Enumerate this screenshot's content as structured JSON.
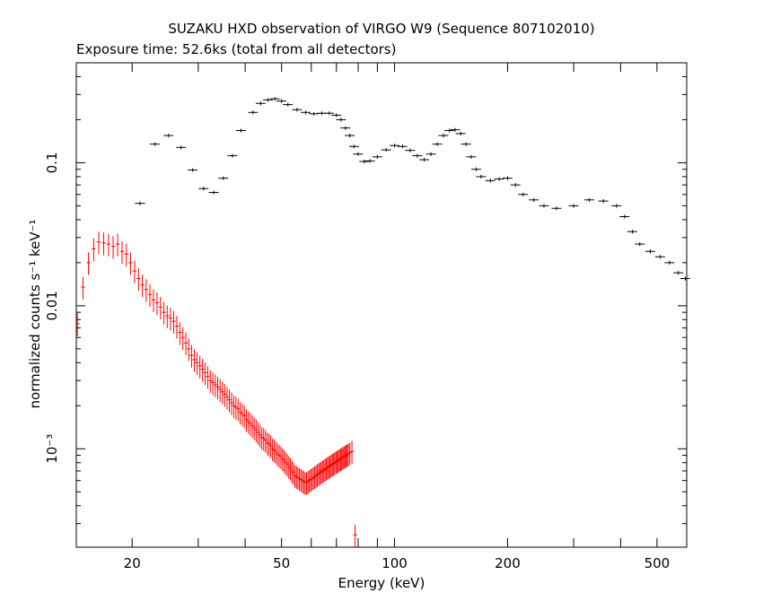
{
  "chart_data": {
    "type": "scatter",
    "title": "SUZAKU HXD observation of VIRGO W9 (Sequence 807102010)",
    "subtitle": "Exposure time: 52.6ks (total from all detectors)",
    "xlabel": "Energy (keV)",
    "ylabel": "normalized counts s⁻¹ keV⁻¹",
    "x_scale": "log",
    "y_scale": "log",
    "xlim": [
      14.2,
      600
    ],
    "ylim": [
      0.000205,
      0.5
    ],
    "x_ticks": [
      "20",
      "50",
      "100",
      "200",
      "500"
    ],
    "y_ticks": [
      "0.1",
      "0.01",
      "10⁻³"
    ],
    "series": [
      {
        "color": "#000000",
        "points": [
          [
            21,
            0.052
          ],
          [
            23,
            0.135
          ],
          [
            25,
            0.155
          ],
          [
            27,
            0.128
          ],
          [
            29,
            0.089
          ],
          [
            31,
            0.066
          ],
          [
            33,
            0.062
          ],
          [
            35,
            0.078
          ],
          [
            37,
            0.112
          ],
          [
            39,
            0.168
          ],
          [
            42,
            0.225
          ],
          [
            44,
            0.26
          ],
          [
            46,
            0.275
          ],
          [
            48,
            0.28
          ],
          [
            50,
            0.27
          ],
          [
            52,
            0.255
          ],
          [
            55,
            0.235
          ],
          [
            58,
            0.225
          ],
          [
            61,
            0.22
          ],
          [
            64,
            0.222
          ],
          [
            67,
            0.222
          ],
          [
            70,
            0.215
          ],
          [
            72,
            0.2
          ],
          [
            74,
            0.175
          ],
          [
            76,
            0.155
          ],
          [
            78,
            0.13
          ],
          [
            80,
            0.115
          ],
          [
            83,
            0.102
          ],
          [
            86,
            0.103
          ],
          [
            90,
            0.11
          ],
          [
            95,
            0.123
          ],
          [
            100,
            0.132
          ],
          [
            105,
            0.13
          ],
          [
            110,
            0.122
          ],
          [
            115,
            0.112
          ],
          [
            120,
            0.105
          ],
          [
            125,
            0.115
          ],
          [
            130,
            0.135
          ],
          [
            135,
            0.155
          ],
          [
            140,
            0.168
          ],
          [
            145,
            0.17
          ],
          [
            150,
            0.16
          ],
          [
            155,
            0.135
          ],
          [
            160,
            0.11
          ],
          [
            165,
            0.09
          ],
          [
            170,
            0.08
          ],
          [
            180,
            0.075
          ],
          [
            190,
            0.077
          ],
          [
            200,
            0.078
          ],
          [
            210,
            0.07
          ],
          [
            220,
            0.06
          ],
          [
            235,
            0.055
          ],
          [
            250,
            0.05
          ],
          [
            270,
            0.048
          ],
          [
            300,
            0.05
          ],
          [
            330,
            0.055
          ],
          [
            360,
            0.054
          ],
          [
            390,
            0.05
          ],
          [
            410,
            0.042
          ],
          [
            430,
            0.033
          ],
          [
            450,
            0.027
          ],
          [
            480,
            0.024
          ],
          [
            510,
            0.022
          ],
          [
            540,
            0.02
          ],
          [
            570,
            0.017
          ],
          [
            595,
            0.0155
          ]
        ]
      },
      {
        "color": "#ff0000",
        "points": [
          [
            14.3,
            0.0075
          ],
          [
            14.8,
            0.0135
          ],
          [
            15.3,
            0.02
          ],
          [
            15.8,
            0.025
          ],
          [
            16.3,
            0.028
          ],
          [
            16.8,
            0.0275
          ],
          [
            17.3,
            0.027
          ],
          [
            17.8,
            0.026
          ],
          [
            18.3,
            0.027
          ],
          [
            18.8,
            0.024
          ],
          [
            19.3,
            0.023
          ],
          [
            19.8,
            0.02
          ],
          [
            20.3,
            0.0175
          ],
          [
            20.8,
            0.0155
          ],
          [
            21.3,
            0.014
          ],
          [
            21.8,
            0.013
          ],
          [
            22.3,
            0.012
          ],
          [
            22.8,
            0.011
          ],
          [
            23.3,
            0.0105
          ],
          [
            23.8,
            0.0098
          ],
          [
            24.3,
            0.009
          ],
          [
            24.8,
            0.0085
          ],
          [
            25.3,
            0.0082
          ],
          [
            25.8,
            0.0078
          ],
          [
            26.3,
            0.0072
          ],
          [
            26.8,
            0.0065
          ],
          [
            27.3,
            0.006
          ],
          [
            27.8,
            0.0055
          ],
          [
            28.3,
            0.005
          ],
          [
            28.8,
            0.0045
          ],
          [
            29.3,
            0.0042
          ],
          [
            29.8,
            0.004
          ],
          [
            30.3,
            0.0038
          ],
          [
            30.8,
            0.0036
          ],
          [
            31.3,
            0.0034
          ],
          [
            31.8,
            0.0032
          ],
          [
            32.3,
            0.003
          ],
          [
            32.8,
            0.0029
          ],
          [
            33.3,
            0.0028
          ],
          [
            33.8,
            0.0027
          ],
          [
            34.3,
            0.0026
          ],
          [
            34.8,
            0.0025
          ],
          [
            35.3,
            0.0024
          ],
          [
            35.8,
            0.0023
          ],
          [
            36.3,
            0.0022
          ],
          [
            36.8,
            0.0021
          ],
          [
            37.3,
            0.002
          ],
          [
            37.8,
            0.00195
          ],
          [
            38.3,
            0.0019
          ],
          [
            38.8,
            0.0018
          ],
          [
            39.3,
            0.00175
          ],
          [
            39.8,
            0.0017
          ],
          [
            40.3,
            0.0016
          ],
          [
            40.8,
            0.00155
          ],
          [
            41.3,
            0.0015
          ],
          [
            41.8,
            0.00145
          ],
          [
            42.3,
            0.0014
          ],
          [
            42.8,
            0.00135
          ],
          [
            43.3,
            0.0013
          ],
          [
            43.8,
            0.00125
          ],
          [
            44.3,
            0.0012
          ],
          [
            44.8,
            0.00118
          ],
          [
            45.3,
            0.00115
          ],
          [
            45.8,
            0.0011
          ],
          [
            46.3,
            0.00108
          ],
          [
            46.8,
            0.00105
          ],
          [
            47.3,
            0.001
          ],
          [
            47.8,
            0.00098
          ],
          [
            48.3,
            0.00095
          ],
          [
            48.8,
            0.00092
          ],
          [
            49.3,
            0.0009
          ],
          [
            49.8,
            0.00088
          ],
          [
            50.3,
            0.00085
          ],
          [
            50.8,
            0.00083
          ],
          [
            51.3,
            0.0008
          ],
          [
            51.8,
            0.00078
          ],
          [
            52.3,
            0.00075
          ],
          [
            52.8,
            0.00073
          ],
          [
            53.3,
            0.0007
          ],
          [
            53.8,
            0.00068
          ],
          [
            54.3,
            0.00065
          ],
          [
            54.8,
            0.00064
          ],
          [
            55.3,
            0.00063
          ],
          [
            55.8,
            0.00062
          ],
          [
            56.3,
            0.00061
          ],
          [
            56.8,
            0.0006
          ],
          [
            57.3,
            0.00059
          ],
          [
            57.8,
            0.00058
          ],
          [
            58.3,
            0.00058
          ],
          [
            58.8,
            0.00059
          ],
          [
            59.3,
            0.0006
          ],
          [
            59.8,
            0.00061
          ],
          [
            60.3,
            0.00062
          ],
          [
            60.8,
            0.00063
          ],
          [
            61.3,
            0.00064
          ],
          [
            61.8,
            0.00065
          ],
          [
            62.3,
            0.00066
          ],
          [
            62.8,
            0.00067
          ],
          [
            63.3,
            0.00068
          ],
          [
            63.8,
            0.00069
          ],
          [
            64.3,
            0.0007
          ],
          [
            64.8,
            0.00071
          ],
          [
            65.3,
            0.00072
          ],
          [
            65.8,
            0.00073
          ],
          [
            66.3,
            0.00074
          ],
          [
            66.8,
            0.00075
          ],
          [
            67.3,
            0.00076
          ],
          [
            67.8,
            0.00077
          ],
          [
            68.3,
            0.00078
          ],
          [
            68.8,
            0.00079
          ],
          [
            69.3,
            0.0008
          ],
          [
            69.8,
            0.00081
          ],
          [
            70.3,
            0.00082
          ],
          [
            70.8,
            0.00083
          ],
          [
            71.3,
            0.00084
          ],
          [
            71.8,
            0.00085
          ],
          [
            72.3,
            0.00086
          ],
          [
            72.8,
            0.00087
          ],
          [
            73.3,
            0.00088
          ],
          [
            73.8,
            0.00089
          ],
          [
            74.3,
            0.0009
          ],
          [
            74.8,
            0.00091
          ],
          [
            75.3,
            0.00092
          ],
          [
            76,
            0.00094
          ],
          [
            77,
            0.00096
          ],
          [
            78.5,
            0.00025
          ]
        ]
      }
    ]
  }
}
